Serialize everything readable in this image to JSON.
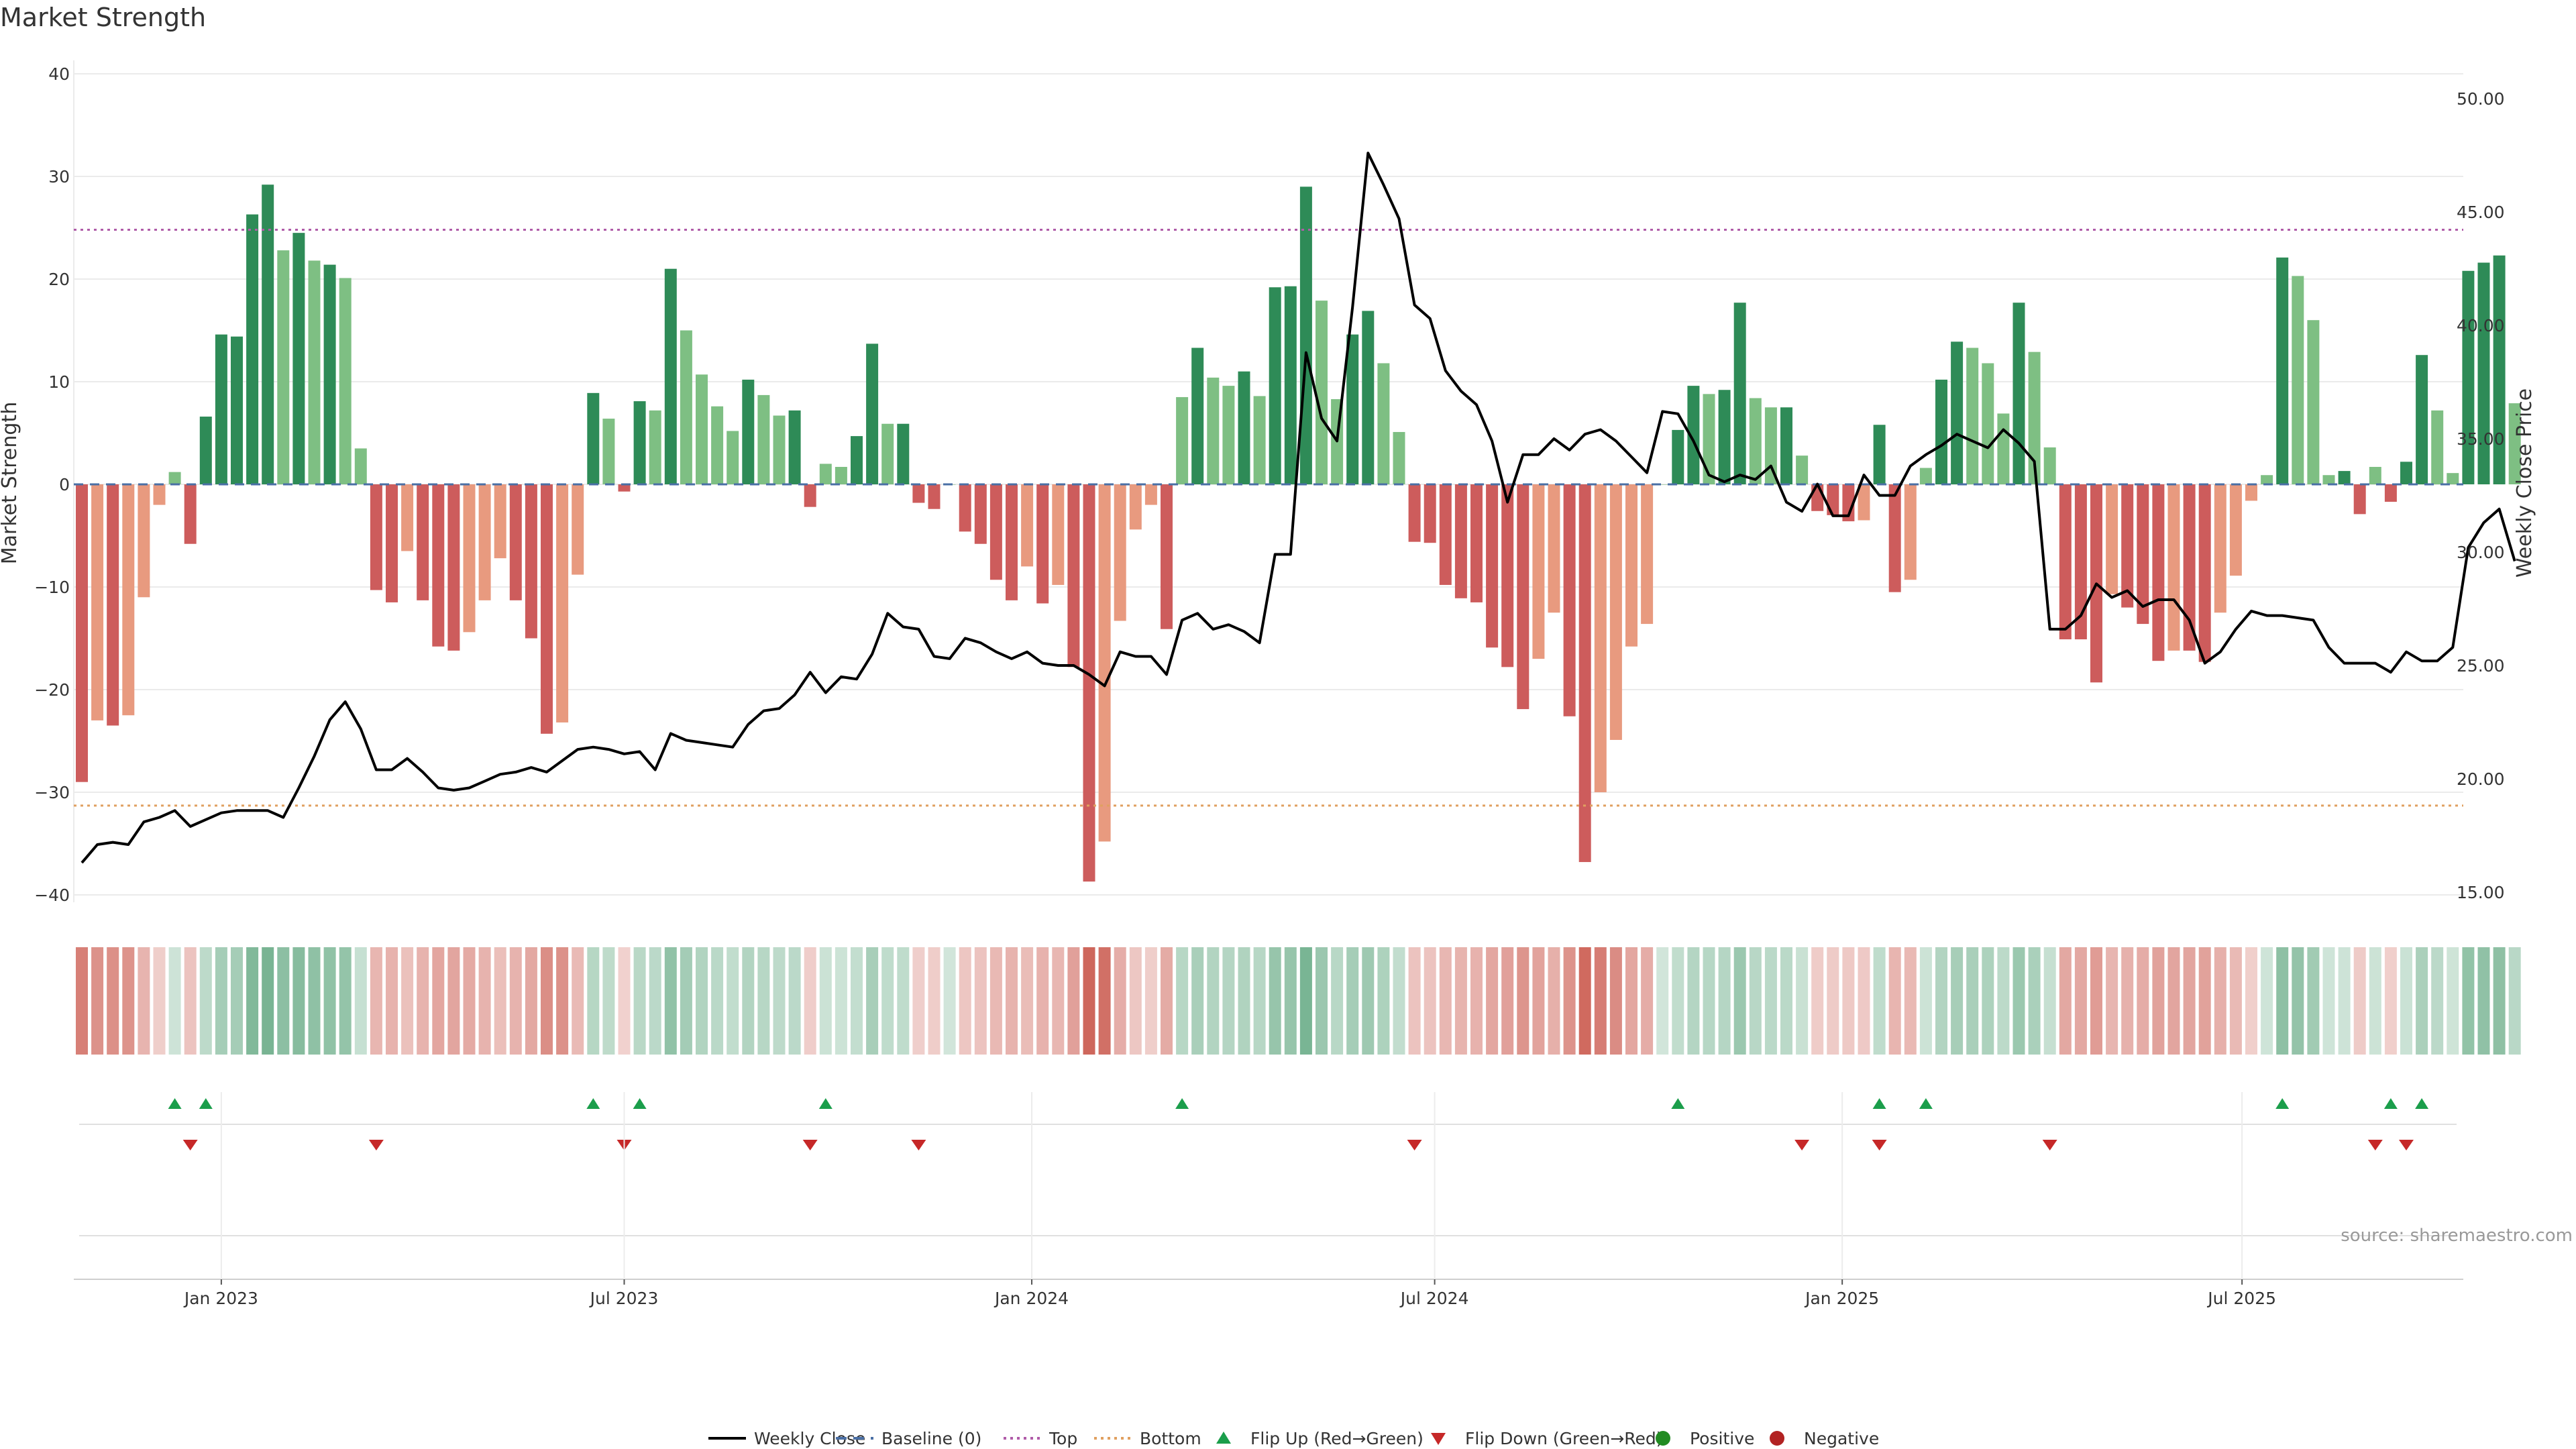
{
  "chart_data": {
    "type": "bar",
    "title": "Market Strength",
    "ylabel": "Market Strength",
    "y2label": "Weekly Close Price",
    "ylim": [
      -42,
      40
    ],
    "y2lim": [
      14.0,
      52.5
    ],
    "yticks": [
      "40",
      "30",
      "20",
      "10",
      "0",
      "−10",
      "−20",
      "−30",
      "−40"
    ],
    "ytick_values": [
      40,
      30,
      20,
      10,
      0,
      -10,
      -20,
      -30,
      -40
    ],
    "y2ticks": [
      "50.00",
      "45.00",
      "40.00",
      "35.00",
      "30.00",
      "25.00",
      "20.00",
      "15.00"
    ],
    "y2tick_values": [
      50,
      45,
      40,
      35,
      30,
      25,
      20,
      15
    ],
    "xticks": [
      {
        "label": "Jan 2023",
        "week": 9
      },
      {
        "label": "Jul 2023",
        "week": 35
      },
      {
        "label": "Jan 2024",
        "week": 61.3
      },
      {
        "label": "Jul 2024",
        "week": 87.3
      },
      {
        "label": "Jan 2025",
        "week": 113.6
      },
      {
        "label": "Jul 2025",
        "week": 139.4
      }
    ],
    "top_line": 24.8,
    "bottom_line": -31.3,
    "grid": true,
    "series": [
      {
        "name": "Market Strength",
        "values": [
          -29.0,
          -23.0,
          -23.5,
          -22.5,
          -11.0,
          -2.0,
          1.2,
          -5.8,
          6.6,
          14.6,
          14.4,
          26.3,
          29.2,
          22.8,
          24.5,
          21.8,
          21.4,
          20.1,
          3.5,
          -10.3,
          -11.5,
          -6.5,
          -11.3,
          -15.8,
          -16.2,
          -14.4,
          -11.3,
          -7.2,
          -11.3,
          -15.0,
          -24.3,
          -23.2,
          -8.8,
          8.9,
          6.4,
          -0.7,
          8.1,
          7.2,
          21.0,
          15.0,
          10.7,
          7.6,
          5.2,
          10.2,
          8.7,
          6.7,
          7.2,
          -2.2,
          2.0,
          1.7,
          4.7,
          13.7,
          5.9,
          5.9,
          -1.8,
          -2.4,
          0,
          -4.6,
          -5.8,
          -9.3,
          -11.3,
          -8.0,
          -11.6,
          -9.8,
          -17.8,
          -38.7,
          -34.8,
          -13.3,
          -4.4,
          -2.0,
          -14.1,
          8.5,
          13.3,
          10.4,
          9.6,
          11.0,
          8.6,
          19.2,
          19.3,
          29.0,
          17.9,
          8.3,
          14.6,
          16.9,
          11.8,
          5.1,
          -5.6,
          -5.7,
          -9.8,
          -11.1,
          -11.5,
          -15.9,
          -17.8,
          -21.9,
          -17.0,
          -12.5,
          -22.6,
          -36.8,
          -30.0,
          -24.9,
          -15.8,
          -13.6,
          0,
          5.3,
          9.6,
          8.8,
          9.2,
          17.7,
          8.4,
          7.5,
          7.5,
          2.8,
          -2.6,
          -3.0,
          -3.6,
          -3.5,
          5.8,
          -10.5,
          -9.3,
          1.6,
          10.2,
          13.9,
          13.3,
          11.8,
          6.9,
          17.7,
          12.9,
          3.6,
          -15.1,
          -15.1,
          -19.3,
          -10.7,
          -12.0,
          -13.6,
          -17.2,
          -16.2,
          -16.2,
          -17.3,
          -12.5,
          -8.9,
          -1.6,
          0.9,
          22.1,
          20.3,
          16.0,
          0.9,
          1.3,
          -2.9,
          1.7,
          -1.7,
          2.2,
          12.6,
          7.2,
          1.1,
          20.8,
          21.6,
          22.3,
          7.9
        ]
      },
      {
        "name": "Weekly Close",
        "values": [
          16.3,
          17.1,
          17.2,
          17.1,
          18.1,
          18.3,
          18.6,
          17.9,
          18.2,
          18.5,
          18.6,
          18.6,
          18.6,
          18.3,
          19.6,
          21.0,
          22.6,
          23.4,
          22.2,
          20.4,
          20.4,
          20.9,
          20.3,
          19.6,
          19.5,
          19.6,
          19.9,
          20.2,
          20.3,
          20.5,
          20.3,
          20.8,
          21.3,
          21.4,
          21.3,
          21.1,
          21.2,
          20.4,
          22.0,
          21.7,
          21.6,
          21.5,
          21.4,
          22.4,
          23.0,
          23.1,
          23.7,
          24.7,
          23.8,
          24.5,
          24.4,
          25.5,
          27.3,
          26.7,
          26.6,
          25.4,
          25.3,
          26.2,
          26.0,
          25.6,
          25.3,
          25.6,
          25.1,
          25.0,
          25.0,
          24.6,
          24.1,
          25.6,
          25.4,
          25.4,
          24.6,
          27.0,
          27.3,
          26.6,
          26.8,
          26.5,
          26.0,
          29.9,
          29.9,
          38.8,
          35.9,
          34.9,
          40.8,
          47.6,
          46.2,
          44.7,
          40.9,
          40.3,
          38.0,
          37.1,
          36.5,
          34.9,
          32.2,
          34.3,
          34.3,
          35.0,
          34.5,
          35.2,
          35.4,
          34.9,
          34.2,
          33.5,
          36.2,
          36.1,
          34.9,
          33.4,
          33.1,
          33.4,
          33.2,
          33.8,
          32.2,
          31.8,
          33.0,
          31.6,
          31.6,
          33.4,
          32.5,
          32.5,
          33.8,
          34.3,
          34.7,
          35.2,
          34.9,
          34.6,
          35.4,
          34.8,
          34.0,
          26.6,
          26.6,
          27.2,
          28.6,
          28.0,
          28.3,
          27.6,
          27.9,
          27.9,
          27.0,
          25.1,
          25.6,
          26.6,
          27.4,
          27.2,
          27.2,
          27.1,
          27.0,
          25.8,
          25.1,
          25.1,
          25.1,
          24.7,
          25.6,
          25.2,
          25.2,
          25.8,
          30.2,
          31.3,
          31.9,
          29.6
        ]
      }
    ],
    "flip_up_weeks": [
      6,
      8,
      33,
      36,
      48,
      71,
      103,
      116,
      119,
      142,
      149,
      151
    ],
    "flip_down_weeks": [
      7,
      19,
      35,
      47,
      54,
      86,
      111,
      116,
      127,
      148,
      150
    ],
    "colors": {
      "pos_strong": "#2e8b57",
      "pos_weak": "#7ebf83",
      "neg_strong": "#cd5c5c",
      "neg_weak": "#e89a7f",
      "price_line": "#000000",
      "baseline": "#4a6fa5",
      "top": "#b05ca8",
      "bottom": "#e0a060",
      "flip_up": "#1b9e4b",
      "flip_down": "#c62828",
      "positive": "#228b22",
      "negative": "#b22222",
      "grid": "#ebebeb"
    }
  },
  "source": "source: sharemaestro.com",
  "legend": [
    {
      "label": "Weekly Close",
      "kind": "line-solid",
      "icon": "solid-line-icon"
    },
    {
      "label": "Baseline (0)",
      "kind": "line-dashed",
      "icon": "dashed-line-icon"
    },
    {
      "label": "Top",
      "kind": "line-dotted-top",
      "icon": "dotted-line-icon"
    },
    {
      "label": "Bottom",
      "kind": "line-dotted-bottom",
      "icon": "dotted-line-icon"
    },
    {
      "label": "Flip Up (Red→Green)",
      "kind": "tri-up",
      "icon": "triangle-up-icon"
    },
    {
      "label": "Flip Down (Green→Red)",
      "kind": "tri-down",
      "icon": "triangle-down-icon"
    },
    {
      "label": "Positive",
      "kind": "dot-pos",
      "icon": "circle-icon"
    },
    {
      "label": "Negative",
      "kind": "dot-neg",
      "icon": "circle-icon"
    }
  ]
}
